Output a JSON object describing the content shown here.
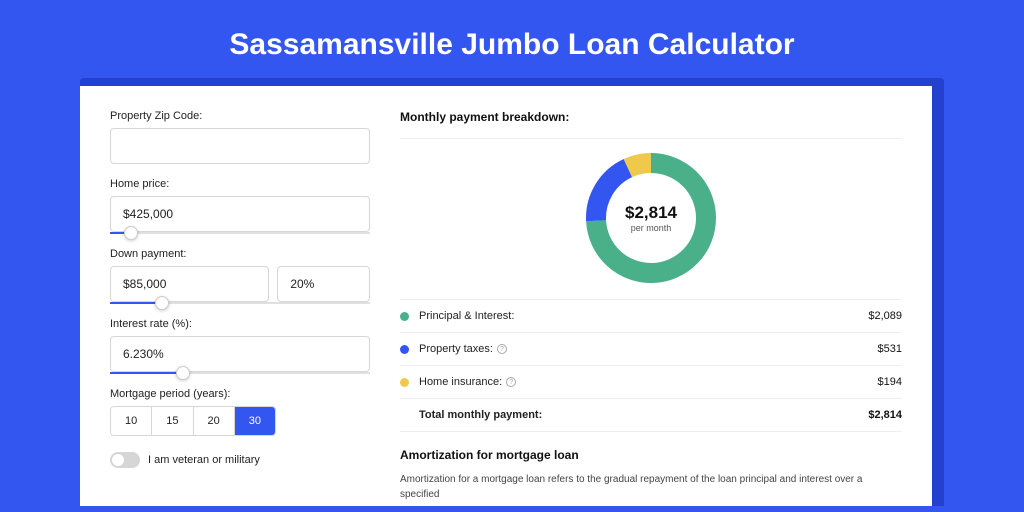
{
  "page": {
    "title": "Sassamansville Jumbo Loan Calculator",
    "background_color": "#3456f0",
    "card_shadow_color": "#2440cf",
    "card_bg": "#ffffff"
  },
  "form": {
    "zip": {
      "label": "Property Zip Code:",
      "value": ""
    },
    "price": {
      "label": "Home price:",
      "value": "$425,000",
      "slider_pct": 8
    },
    "down": {
      "label": "Down payment:",
      "amount": "$85,000",
      "pct": "20%",
      "slider_pct": 20
    },
    "rate": {
      "label": "Interest rate (%):",
      "value": "6.230%",
      "slider_pct": 28
    },
    "period": {
      "label": "Mortgage period (years):",
      "options": [
        "10",
        "15",
        "20",
        "30"
      ],
      "selected": "30"
    },
    "veteran": {
      "label": "I am veteran or military",
      "checked": false
    }
  },
  "breakdown": {
    "title": "Monthly payment breakdown:",
    "donut": {
      "center_value": "$2,814",
      "center_sub": "per month",
      "slices": [
        {
          "key": "principal",
          "pct": 74.2,
          "color": "#4ab08a"
        },
        {
          "key": "taxes",
          "pct": 18.9,
          "color": "#3456f0"
        },
        {
          "key": "insurance",
          "pct": 6.9,
          "color": "#efc94c"
        }
      ],
      "thickness": 20,
      "size": 130
    },
    "items": [
      {
        "label": "Principal & Interest:",
        "value": "$2,089",
        "color": "#4ab08a",
        "info": false
      },
      {
        "label": "Property taxes:",
        "value": "$531",
        "color": "#3456f0",
        "info": true
      },
      {
        "label": "Home insurance:",
        "value": "$194",
        "color": "#efc94c",
        "info": true
      }
    ],
    "total": {
      "label": "Total monthly payment:",
      "value": "$2,814"
    }
  },
  "amort": {
    "title": "Amortization for mortgage loan",
    "text": "Amortization for a mortgage loan refers to the gradual repayment of the loan principal and interest over a specified"
  }
}
